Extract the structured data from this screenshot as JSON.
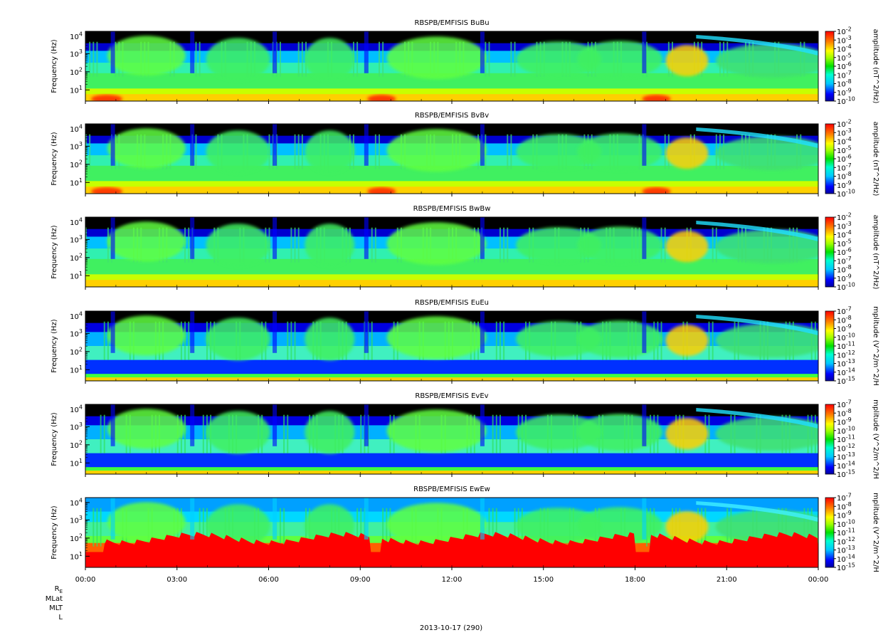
{
  "figure": {
    "date_label": "2013-10-17 (290)",
    "orbit_labels": [
      "R",
      "MLat",
      "MLT",
      "L"
    ],
    "orbit_label_subscript": "E"
  },
  "chart_data": [
    {
      "type": "heatmap",
      "title": "RBSPB/EMFISIS  BuBu",
      "ylabel": "Frequency (Hz)",
      "yscale": "log",
      "y_ticks": [
        "10^1",
        "10^2",
        "10^3",
        "10^4"
      ],
      "colorbar_label": "amplitude (nT^2/Hz)",
      "colorbar_ticks": [
        "10^-2",
        "10^-3",
        "10^-4",
        "10^-5",
        "10^-6",
        "10^-7",
        "10^-8",
        "10^-9",
        "10^-10"
      ]
    },
    {
      "type": "heatmap",
      "title": "RBSPB/EMFISIS  BvBv",
      "ylabel": "Frequency (Hz)",
      "yscale": "log",
      "y_ticks": [
        "10^1",
        "10^2",
        "10^3",
        "10^4"
      ],
      "colorbar_label": "amplitude (nT^2/Hz)",
      "colorbar_ticks": [
        "10^-2",
        "10^-3",
        "10^-4",
        "10^-5",
        "10^-6",
        "10^-7",
        "10^-8",
        "10^-9",
        "10^-10"
      ]
    },
    {
      "type": "heatmap",
      "title": "RBSPB/EMFISIS  BwBw",
      "ylabel": "Frequency (Hz)",
      "yscale": "log",
      "y_ticks": [
        "10^1",
        "10^2",
        "10^3",
        "10^4"
      ],
      "colorbar_label": "amplitude (nT^2/Hz)",
      "colorbar_ticks": [
        "10^-2",
        "10^-3",
        "10^-4",
        "10^-5",
        "10^-6",
        "10^-7",
        "10^-8",
        "10^-9",
        "10^-10"
      ]
    },
    {
      "type": "heatmap",
      "title": "RBSPB/EMFISIS  EuEu",
      "ylabel": "Frequency (Hz)",
      "yscale": "log",
      "y_ticks": [
        "10^1",
        "10^2",
        "10^3",
        "10^4"
      ],
      "colorbar_label": "mplitude (V^2/m^2/H",
      "colorbar_ticks": [
        "10^-7",
        "10^-8",
        "10^-9",
        "10^-10",
        "10^-11",
        "10^-12",
        "10^-13",
        "10^-14",
        "10^-15"
      ]
    },
    {
      "type": "heatmap",
      "title": "RBSPB/EMFISIS  EvEv",
      "ylabel": "Frequency (Hz)",
      "yscale": "log",
      "y_ticks": [
        "10^1",
        "10^2",
        "10^3",
        "10^4"
      ],
      "colorbar_label": "mplitude (V^2/m^2/H",
      "colorbar_ticks": [
        "10^-7",
        "10^-8",
        "10^-9",
        "10^-10",
        "10^-11",
        "10^-12",
        "10^-13",
        "10^-14",
        "10^-15"
      ]
    },
    {
      "type": "heatmap",
      "title": "RBSPB/EMFISIS  EwEw",
      "ylabel": "Frequency (Hz)",
      "yscale": "log",
      "y_ticks": [
        "10^1",
        "10^2",
        "10^3",
        "10^4"
      ],
      "colorbar_label": "mplitude (V^2/m^2/H",
      "colorbar_ticks": [
        "10^-7",
        "10^-8",
        "10^-9",
        "10^-10",
        "10^-11",
        "10^-12",
        "10^-13",
        "10^-14",
        "10^-15"
      ],
      "x_ticks": [
        "00:00",
        "03:00",
        "06:00",
        "09:00",
        "12:00",
        "15:00",
        "18:00",
        "21:00",
        "00:00"
      ]
    }
  ]
}
